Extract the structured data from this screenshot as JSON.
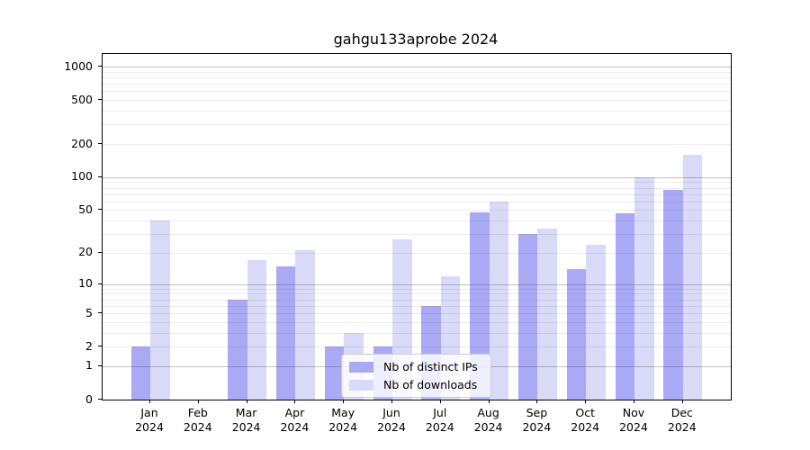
{
  "title": "gahgu133aprobe 2024",
  "background_color": "#ffffff",
  "chart_data": {
    "type": "bar",
    "title": "gahgu133aprobe 2024",
    "categories": [
      "Jan",
      "Feb",
      "Mar",
      "Apr",
      "May",
      "Jun",
      "Jul",
      "Aug",
      "Sep",
      "Oct",
      "Nov",
      "Dec"
    ],
    "year": "2024",
    "x_tick_labels": [
      "Jan\n2024",
      "Feb\n2024",
      "Mar\n2024",
      "Apr\n2024",
      "May\n2024",
      "Jun\n2024",
      "Jul\n2024",
      "Aug\n2024",
      "Sep\n2024",
      "Oct\n2024",
      "Nov\n2024",
      "Dec\n2024"
    ],
    "series": [
      {
        "name": "Nb of distinct IPs",
        "color": "#a9a9f5",
        "values": [
          2,
          0,
          7,
          15,
          2,
          2,
          6,
          48,
          30,
          14,
          47,
          77
        ]
      },
      {
        "name": "Nb of downloads",
        "color": "#d9d9f8",
        "values": [
          40,
          0,
          17,
          21,
          3,
          27,
          12,
          60,
          34,
          24,
          100,
          160
        ]
      }
    ],
    "yscale": "log10(value+1)",
    "yticks": [
      0,
      1,
      2,
      5,
      10,
      20,
      50,
      100,
      200,
      500,
      1000
    ],
    "ytick_labels": [
      "0",
      "1",
      "2",
      "5",
      "10",
      "20",
      "50",
      "100",
      "200",
      "500",
      "1000"
    ],
    "major_gridlines_at": [
      1,
      10,
      100,
      1000
    ],
    "ylim": [
      0,
      1300
    ],
    "grid": true,
    "legend_position": "inside lower center",
    "legend_labels": [
      "Nb of distinct IPs",
      "Nb of downloads"
    ]
  }
}
